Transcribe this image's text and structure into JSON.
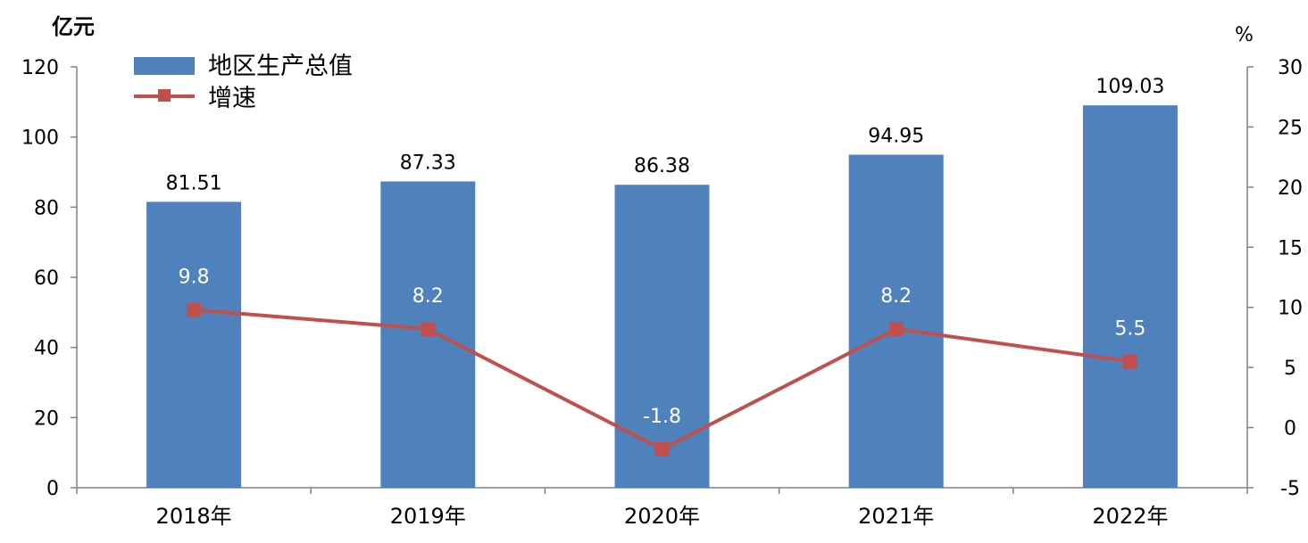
{
  "chart_data": {
    "type": "bar",
    "categories": [
      "2018年",
      "2019年",
      "2020年",
      "2021年",
      "2022年"
    ],
    "series": [
      {
        "name": "地区生产总值",
        "type": "bar",
        "axis": "left",
        "values": [
          81.51,
          87.33,
          86.38,
          94.95,
          109.03
        ],
        "labels": [
          "81.51",
          "87.33",
          "86.38",
          "94.95",
          "109.03"
        ]
      },
      {
        "name": "增速",
        "type": "line",
        "axis": "right",
        "values": [
          9.8,
          8.2,
          -1.8,
          8.2,
          5.5
        ],
        "labels": [
          "9.8",
          "8.2",
          "-1.8",
          "8.2",
          "5.5"
        ]
      }
    ],
    "left_axis": {
      "unit": "亿元",
      "ylim": [
        0,
        120
      ],
      "ticks": [
        "0",
        "20",
        "40",
        "60",
        "80",
        "100",
        "120"
      ]
    },
    "right_axis": {
      "unit": "%",
      "ylim": [
        -5,
        30
      ],
      "ticks": [
        "-5",
        "0",
        "5",
        "10",
        "15",
        "20",
        "25",
        "30"
      ]
    },
    "legend_position": "top-left",
    "grid": false,
    "colors": {
      "bar": "#4f81bd",
      "line": "#c0504d",
      "marker": "#c0504d"
    }
  }
}
